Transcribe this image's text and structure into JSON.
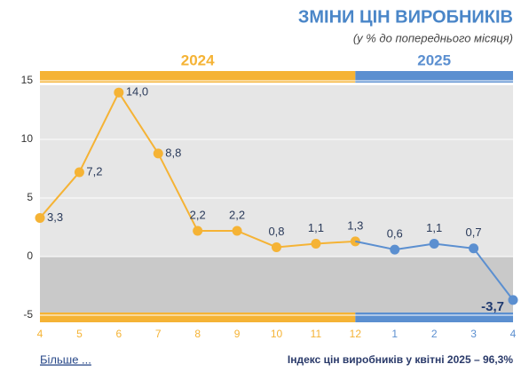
{
  "chart_data": {
    "type": "line",
    "title": "ЗМІНИ ЦІН ВИРОБНИКІВ",
    "subtitle": "(у % до попереднього місяця)",
    "categories": [
      "4",
      "5",
      "6",
      "7",
      "8",
      "9",
      "10",
      "11",
      "12",
      "1",
      "2",
      "3",
      "4"
    ],
    "series": [
      {
        "name": "2024",
        "color": "#f5b335",
        "values": [
          3.3,
          7.2,
          14.0,
          8.8,
          2.2,
          2.2,
          0.8,
          1.1,
          1.3,
          null,
          null,
          null,
          null
        ],
        "value_labels": [
          "3,3",
          "7,2",
          "14,0",
          "8,8",
          "2,2",
          "2,2",
          "0,8",
          "1,1",
          "1,3",
          null,
          null,
          null,
          null
        ]
      },
      {
        "name": "2025",
        "color": "#5b8fd0",
        "values": [
          null,
          null,
          null,
          null,
          null,
          null,
          null,
          null,
          null,
          0.6,
          1.1,
          0.7,
          -3.7
        ],
        "value_labels": [
          null,
          null,
          null,
          null,
          null,
          null,
          null,
          null,
          null,
          "0,6",
          "1,1",
          "0,7",
          "-3,7"
        ]
      }
    ],
    "ylim": [
      -5,
      15
    ],
    "yticks": [
      -5,
      0,
      5,
      10,
      15
    ],
    "grid": true,
    "more_link": "Більше ...",
    "note": "Індекс цін виробників у квітні 2025 – 96,3%"
  }
}
